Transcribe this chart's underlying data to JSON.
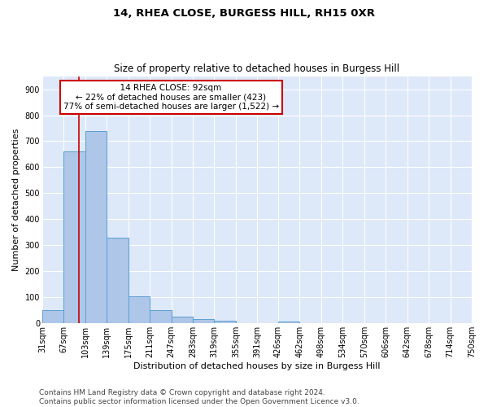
{
  "title1": "14, RHEA CLOSE, BURGESS HILL, RH15 0XR",
  "title2": "Size of property relative to detached houses in Burgess Hill",
  "xlabel": "Distribution of detached houses by size in Burgess Hill",
  "ylabel": "Number of detached properties",
  "footer1": "Contains HM Land Registry data © Crown copyright and database right 2024.",
  "footer2": "Contains public sector information licensed under the Open Government Licence v3.0.",
  "annotation_line1": "14 RHEA CLOSE: 92sqm",
  "annotation_line2": "← 22% of detached houses are smaller (423)",
  "annotation_line3": "77% of semi-detached houses are larger (1,522) →",
  "property_size": 92,
  "bar_edges": [
    31,
    67,
    103,
    139,
    175,
    211,
    247,
    283,
    319,
    355,
    391,
    426,
    462,
    498,
    534,
    570,
    606,
    642,
    678,
    714,
    750
  ],
  "bar_heights": [
    50,
    660,
    740,
    330,
    105,
    50,
    25,
    15,
    10,
    0,
    0,
    8,
    0,
    0,
    0,
    0,
    0,
    0,
    0,
    0
  ],
  "bar_color": "#aec6e8",
  "bar_edge_color": "#5a9fd4",
  "vline_color": "#cc0000",
  "vline_x": 92,
  "box_color": "#cc0000",
  "background_color": "#dde8f8",
  "grid_color": "#ffffff",
  "ylim": [
    0,
    950
  ],
  "yticks": [
    0,
    100,
    200,
    300,
    400,
    500,
    600,
    700,
    800,
    900
  ],
  "title_fontsize": 9.5,
  "subtitle_fontsize": 8.5,
  "axis_label_fontsize": 8,
  "tick_fontsize": 7,
  "annotation_fontsize": 7.5,
  "footer_fontsize": 6.5
}
